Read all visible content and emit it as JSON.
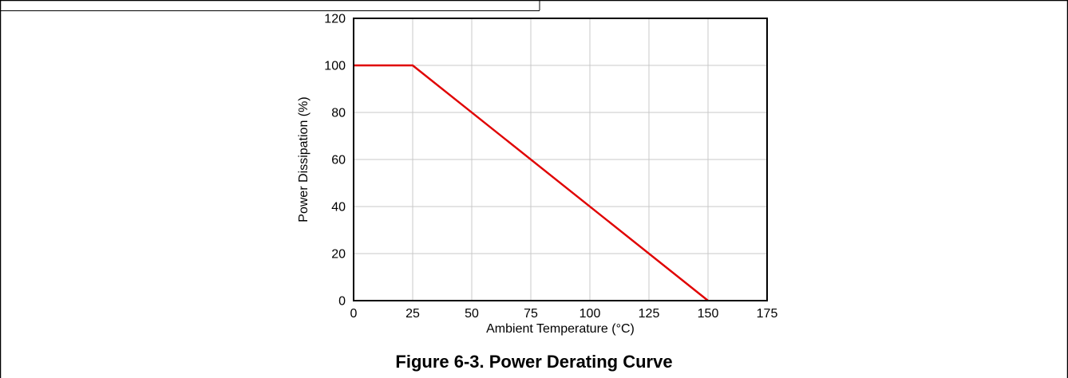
{
  "caption": "Figure 6-3. Power Derating Curve",
  "chart_data": {
    "type": "line",
    "title": "",
    "xlabel": "Ambient Temperature (°C)",
    "ylabel": "Power Dissipation (%)",
    "xlim": [
      0,
      175
    ],
    "ylim": [
      0,
      120
    ],
    "xticks": [
      0,
      25,
      50,
      75,
      100,
      125,
      150,
      175
    ],
    "yticks": [
      0,
      20,
      40,
      60,
      80,
      100,
      120
    ],
    "xtick_labels": [
      "0",
      "25",
      "50",
      "75",
      "100",
      "125",
      "150",
      "175"
    ],
    "ytick_labels": [
      "0",
      "20",
      "40",
      "60",
      "80",
      "100",
      "120"
    ],
    "grid": true,
    "legend": "none",
    "series": [
      {
        "color": "#e00000",
        "x": [
          0,
          25,
          150
        ],
        "y": [
          100,
          100,
          0
        ]
      }
    ]
  }
}
